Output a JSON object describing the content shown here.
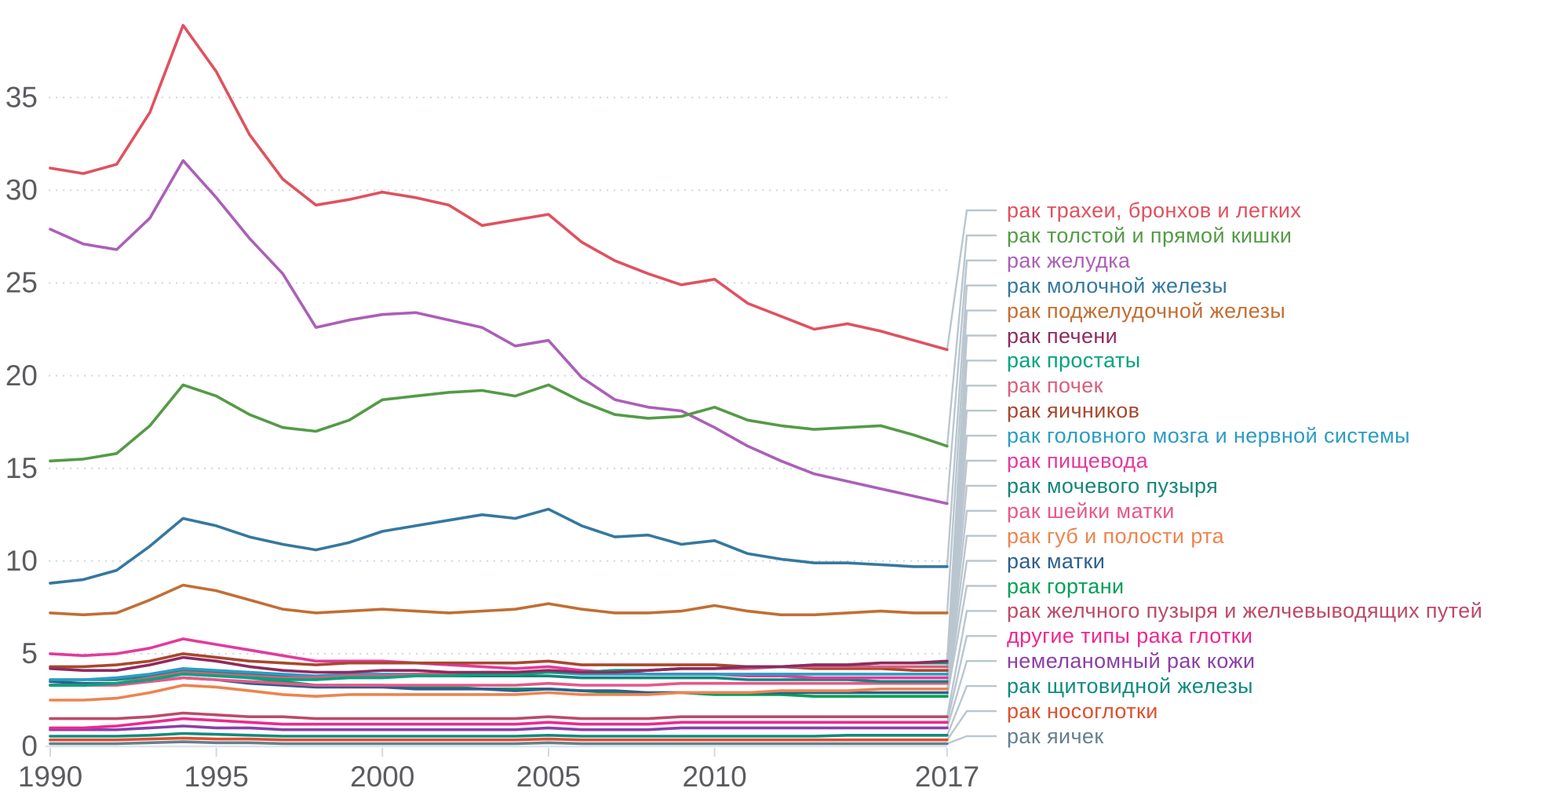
{
  "chart_data": {
    "type": "line",
    "title": "",
    "xlabel": "",
    "ylabel": "",
    "grid": "dotted horizontal gridlines",
    "legend_position": "right, connector leader lines from line ends to labels",
    "xlim": [
      1990,
      2017
    ],
    "ylim": [
      0,
      39.5
    ],
    "yticks": [
      0,
      5,
      10,
      15,
      20,
      25,
      30,
      35
    ],
    "xticks_shown": [
      "1990",
      "1995",
      "2000",
      "2005",
      "2010",
      "2017"
    ],
    "xtick_years": [
      1990,
      1995,
      2000,
      2005,
      2010,
      2017
    ],
    "years": [
      1990,
      1991,
      1992,
      1993,
      1994,
      1995,
      1996,
      1997,
      1998,
      1999,
      2000,
      2001,
      2002,
      2003,
      2004,
      2005,
      2006,
      2007,
      2008,
      2009,
      2010,
      2011,
      2012,
      2013,
      2014,
      2015,
      2016,
      2017
    ],
    "axis_color": "#5b5c60",
    "grid_color": "#ccdae4",
    "connector_color": "#b9c6cf",
    "series": [
      {
        "name": "рак трахеи, бронхов и легких",
        "color": "#e0515e",
        "values": [
          31.2,
          30.9,
          31.4,
          34.2,
          38.9,
          36.4,
          33.0,
          30.6,
          29.2,
          29.5,
          29.9,
          29.6,
          29.2,
          28.1,
          28.4,
          28.7,
          27.2,
          26.2,
          25.5,
          24.9,
          25.2,
          23.9,
          23.2,
          22.5,
          22.8,
          22.4,
          21.9,
          21.4
        ]
      },
      {
        "name": "рак толстой и прямой кишки",
        "color": "#549b46",
        "values": [
          15.4,
          15.5,
          15.8,
          17.3,
          19.5,
          18.9,
          17.9,
          17.2,
          17.0,
          17.6,
          18.7,
          18.9,
          19.1,
          19.2,
          18.9,
          19.5,
          18.6,
          17.9,
          17.7,
          17.8,
          18.3,
          17.6,
          17.3,
          17.1,
          17.2,
          17.3,
          16.8,
          16.2
        ]
      },
      {
        "name": "рак желудка",
        "color": "#ab5fb8",
        "values": [
          27.9,
          27.1,
          26.8,
          28.5,
          31.6,
          29.6,
          27.4,
          25.5,
          22.6,
          23.0,
          23.3,
          23.4,
          23.0,
          22.6,
          21.6,
          21.9,
          19.9,
          18.7,
          18.3,
          18.1,
          17.2,
          16.2,
          15.4,
          14.7,
          14.3,
          13.9,
          13.5,
          13.1
        ]
      },
      {
        "name": "рак молочной железы",
        "color": "#35789f",
        "values": [
          8.8,
          9.0,
          9.5,
          10.8,
          12.3,
          11.9,
          11.3,
          10.9,
          10.6,
          11.0,
          11.6,
          11.9,
          12.2,
          12.5,
          12.3,
          12.8,
          11.9,
          11.3,
          11.4,
          10.9,
          11.1,
          10.4,
          10.1,
          9.9,
          9.9,
          9.8,
          9.7,
          9.7
        ]
      },
      {
        "name": "рак поджелудочной железы",
        "color": "#c26e33",
        "values": [
          7.2,
          7.1,
          7.2,
          7.9,
          8.7,
          8.4,
          7.9,
          7.4,
          7.2,
          7.3,
          7.4,
          7.3,
          7.2,
          7.3,
          7.4,
          7.7,
          7.4,
          7.2,
          7.2,
          7.3,
          7.6,
          7.3,
          7.1,
          7.1,
          7.2,
          7.3,
          7.2,
          7.2
        ]
      },
      {
        "name": "рак печени",
        "color": "#8f2a5f",
        "values": [
          4.2,
          4.1,
          4.1,
          4.4,
          4.8,
          4.6,
          4.3,
          4.1,
          4.0,
          4.0,
          4.1,
          4.1,
          4.0,
          4.0,
          4.0,
          4.1,
          4.0,
          4.0,
          4.1,
          4.2,
          4.2,
          4.3,
          4.3,
          4.4,
          4.4,
          4.5,
          4.5,
          4.6
        ]
      },
      {
        "name": "рак простаты",
        "color": "#00a47e",
        "values": [
          3.3,
          3.3,
          3.4,
          3.6,
          3.9,
          3.8,
          3.7,
          3.6,
          3.6,
          3.7,
          3.7,
          3.8,
          3.8,
          3.9,
          3.9,
          4.0,
          4.0,
          4.1,
          4.1,
          4.2,
          4.2,
          4.3,
          4.3,
          4.4,
          4.4,
          4.5,
          4.5,
          4.5
        ]
      },
      {
        "name": "рак почек",
        "color": "#d75f7d",
        "values": [
          3.3,
          3.3,
          3.4,
          3.7,
          4.0,
          3.9,
          3.8,
          3.7,
          3.7,
          3.8,
          3.8,
          3.9,
          3.9,
          4.0,
          4.0,
          4.1,
          4.0,
          4.1,
          4.1,
          4.2,
          4.2,
          4.2,
          4.3,
          4.3,
          4.3,
          4.3,
          4.3,
          4.3
        ]
      },
      {
        "name": "рак яичников",
        "color": "#a8472e",
        "values": [
          4.3,
          4.3,
          4.4,
          4.6,
          5.0,
          4.8,
          4.6,
          4.5,
          4.4,
          4.5,
          4.5,
          4.5,
          4.5,
          4.5,
          4.5,
          4.6,
          4.4,
          4.4,
          4.4,
          4.4,
          4.4,
          4.3,
          4.3,
          4.2,
          4.2,
          4.2,
          4.1,
          4.1
        ]
      },
      {
        "name": "рак головного мозга и нервной системы",
        "color": "#2b9cc4",
        "values": [
          3.6,
          3.6,
          3.7,
          3.9,
          4.2,
          4.1,
          4.0,
          3.9,
          3.8,
          3.9,
          3.9,
          3.9,
          3.9,
          3.9,
          3.9,
          4.0,
          3.9,
          3.9,
          3.9,
          3.9,
          3.9,
          3.9,
          3.9,
          3.9,
          3.9,
          3.9,
          3.9,
          3.9
        ]
      },
      {
        "name": "рак пищевода",
        "color": "#e23a9e",
        "values": [
          5.0,
          4.9,
          5.0,
          5.3,
          5.8,
          5.5,
          5.2,
          4.9,
          4.6,
          4.6,
          4.6,
          4.5,
          4.4,
          4.3,
          4.2,
          4.3,
          4.1,
          4.0,
          3.9,
          3.9,
          3.9,
          3.8,
          3.8,
          3.7,
          3.7,
          3.7,
          3.7,
          3.7
        ]
      },
      {
        "name": "рак мочевого пузыря",
        "color": "#15857b",
        "values": [
          3.6,
          3.6,
          3.6,
          3.8,
          4.1,
          4.0,
          3.9,
          3.8,
          3.7,
          3.8,
          3.8,
          3.8,
          3.8,
          3.8,
          3.8,
          3.8,
          3.7,
          3.7,
          3.7,
          3.7,
          3.7,
          3.6,
          3.6,
          3.6,
          3.6,
          3.5,
          3.5,
          3.5
        ]
      },
      {
        "name": "рак шейки матки",
        "color": "#e8578a",
        "values": [
          3.3,
          3.3,
          3.3,
          3.5,
          3.7,
          3.6,
          3.5,
          3.4,
          3.3,
          3.3,
          3.3,
          3.3,
          3.3,
          3.3,
          3.3,
          3.4,
          3.3,
          3.3,
          3.3,
          3.4,
          3.4,
          3.4,
          3.4,
          3.4,
          3.4,
          3.4,
          3.4,
          3.4
        ]
      },
      {
        "name": "рак губ и полости рта",
        "color": "#ec8450",
        "values": [
          2.5,
          2.5,
          2.6,
          2.9,
          3.3,
          3.2,
          3.0,
          2.8,
          2.7,
          2.8,
          2.8,
          2.8,
          2.8,
          2.8,
          2.8,
          2.9,
          2.8,
          2.8,
          2.8,
          2.9,
          2.9,
          2.9,
          3.0,
          3.0,
          3.0,
          3.1,
          3.1,
          3.1
        ]
      },
      {
        "name": "рак матки",
        "color": "#2b608f",
        "values": [
          3.5,
          3.4,
          3.4,
          3.5,
          3.7,
          3.6,
          3.4,
          3.3,
          3.2,
          3.2,
          3.2,
          3.1,
          3.1,
          3.1,
          3.0,
          3.1,
          3.0,
          3.0,
          2.9,
          2.9,
          2.9,
          2.9,
          2.9,
          2.9,
          2.9,
          2.9,
          2.9,
          2.9
        ]
      },
      {
        "name": "рак гортани",
        "color": "#00a057",
        "values": [
          3.3,
          3.3,
          3.4,
          3.7,
          4.1,
          3.9,
          3.7,
          3.5,
          3.3,
          3.3,
          3.3,
          3.2,
          3.2,
          3.1,
          3.1,
          3.1,
          3.0,
          2.9,
          2.9,
          2.9,
          2.8,
          2.8,
          2.8,
          2.7,
          2.7,
          2.7,
          2.7,
          2.7
        ]
      },
      {
        "name": "рак желчного пузыря и желчевыводящих путей",
        "color": "#bc4a68",
        "values": [
          1.5,
          1.5,
          1.5,
          1.6,
          1.8,
          1.7,
          1.6,
          1.6,
          1.5,
          1.5,
          1.5,
          1.5,
          1.5,
          1.5,
          1.5,
          1.6,
          1.5,
          1.5,
          1.5,
          1.6,
          1.6,
          1.6,
          1.6,
          1.6,
          1.6,
          1.6,
          1.6,
          1.6
        ]
      },
      {
        "name": "другие типы рака глотки",
        "color": "#ed2891",
        "values": [
          1.0,
          1.0,
          1.1,
          1.3,
          1.5,
          1.4,
          1.3,
          1.2,
          1.2,
          1.2,
          1.2,
          1.2,
          1.2,
          1.2,
          1.2,
          1.3,
          1.2,
          1.2,
          1.2,
          1.3,
          1.3,
          1.3,
          1.3,
          1.3,
          1.3,
          1.3,
          1.3,
          1.3
        ]
      },
      {
        "name": "немеланомный рак кожи",
        "color": "#8b3fa8",
        "values": [
          0.9,
          0.9,
          0.9,
          1.0,
          1.1,
          1.0,
          1.0,
          0.9,
          0.9,
          0.9,
          0.9,
          0.9,
          0.9,
          0.9,
          0.9,
          1.0,
          0.9,
          0.9,
          0.9,
          1.0,
          1.0,
          1.0,
          1.0,
          1.0,
          1.0,
          1.0,
          1.0,
          1.0
        ]
      },
      {
        "name": "рак щитовидной железы",
        "color": "#0f8b80",
        "values": [
          0.55,
          0.55,
          0.55,
          0.6,
          0.7,
          0.65,
          0.6,
          0.55,
          0.55,
          0.55,
          0.55,
          0.55,
          0.55,
          0.55,
          0.55,
          0.6,
          0.55,
          0.55,
          0.55,
          0.55,
          0.55,
          0.55,
          0.55,
          0.55,
          0.6,
          0.6,
          0.6,
          0.6
        ]
      },
      {
        "name": "рак носоглотки",
        "color": "#dd4f2e",
        "values": [
          0.35,
          0.35,
          0.35,
          0.4,
          0.45,
          0.4,
          0.4,
          0.35,
          0.35,
          0.35,
          0.35,
          0.35,
          0.35,
          0.35,
          0.35,
          0.4,
          0.35,
          0.35,
          0.35,
          0.35,
          0.35,
          0.35,
          0.35,
          0.35,
          0.35,
          0.35,
          0.35,
          0.35
        ]
      },
      {
        "name": "рак яичек",
        "color": "#64808f",
        "values": [
          0.15,
          0.15,
          0.15,
          0.2,
          0.25,
          0.2,
          0.2,
          0.15,
          0.15,
          0.15,
          0.15,
          0.15,
          0.15,
          0.15,
          0.15,
          0.2,
          0.15,
          0.15,
          0.15,
          0.15,
          0.15,
          0.15,
          0.15,
          0.15,
          0.15,
          0.15,
          0.15,
          0.15
        ]
      }
    ]
  }
}
